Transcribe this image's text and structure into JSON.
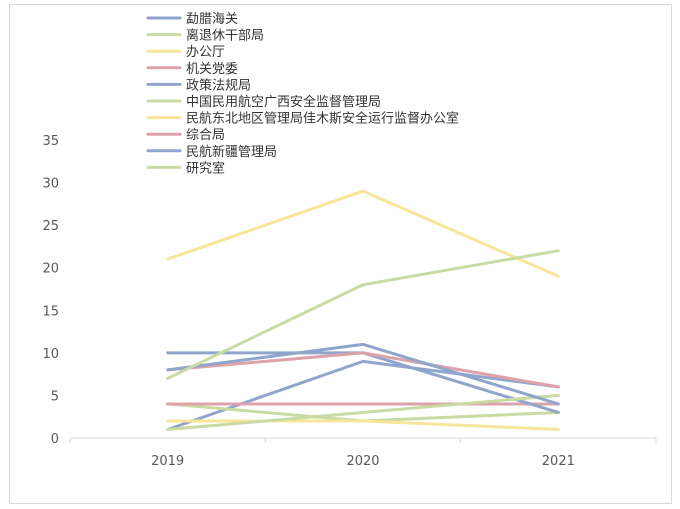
{
  "chart_data": {
    "type": "line",
    "categories": [
      "2019",
      "2020",
      "2021"
    ],
    "ylim": [
      0,
      35
    ],
    "yticks": [
      0,
      5,
      10,
      15,
      20,
      25,
      30,
      35
    ],
    "legend_position": "top",
    "grid": false,
    "series": [
      {
        "name": "勐腊海关",
        "color": "#8fa5cb",
        "values": [
          1,
          9,
          6
        ]
      },
      {
        "name": "离退休干部局",
        "color": "#c9dba5",
        "values": [
          4,
          2,
          3
        ]
      },
      {
        "name": "办公厅",
        "color": "#f8e598",
        "values": [
          2,
          2,
          1
        ]
      },
      {
        "name": "机关党委",
        "color": "#dca3aa",
        "values": [
          4,
          4,
          4
        ]
      },
      {
        "name": "政策法规局",
        "color": "#8fa5cb",
        "values": [
          10,
          10,
          3
        ]
      },
      {
        "name": "中国民用航空广西安全监督管理局",
        "color": "#c9dba5",
        "values": [
          1,
          3,
          5
        ]
      },
      {
        "name": "民航东北地区管理局佳木斯安全运行监督办公室",
        "color": "#f8e598",
        "values": [
          21,
          29,
          19
        ]
      },
      {
        "name": "综合局",
        "color": "#dca3aa",
        "values": [
          8,
          10,
          6
        ]
      },
      {
        "name": "民航新疆管理局",
        "color": "#8fa5cb",
        "values": [
          8,
          11,
          4
        ]
      },
      {
        "name": "研究室",
        "color": "#c9dba5",
        "values": [
          7,
          18,
          22
        ]
      }
    ]
  }
}
